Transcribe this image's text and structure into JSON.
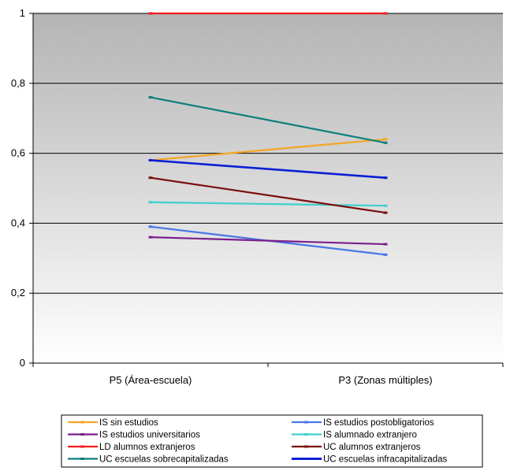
{
  "chart_data": {
    "type": "line",
    "categories": [
      "P5 (Área-escuela)",
      "P3 (Zonas múltiples)"
    ],
    "y_ticks": [
      "0",
      "0,2",
      "0,4",
      "0,6",
      "0,8",
      "1"
    ],
    "ylim": [
      0,
      1
    ],
    "grid": true,
    "legend_placement": "bottom",
    "series": [
      {
        "name": "IS sin estudios",
        "values": [
          0.58,
          0.64
        ],
        "color": "#F5A623"
      },
      {
        "name": "IS estudios postobligatorios",
        "values": [
          0.39,
          0.31
        ],
        "color": "#4A76E6"
      },
      {
        "name": "IS estudios universitarios",
        "values": [
          0.36,
          0.34
        ],
        "color": "#7B1F8C"
      },
      {
        "name": "IS alumnado extranjero",
        "values": [
          0.46,
          0.45
        ],
        "color": "#3FD0CC"
      },
      {
        "name": "LD alumnos extranjeros",
        "values": [
          1.0,
          1.0
        ],
        "color": "#F21B1B"
      },
      {
        "name": "UC alumnos extranjeros",
        "values": [
          0.53,
          0.43
        ],
        "color": "#7A0C0C"
      },
      {
        "name": "UC escuelas sobrecapitalizadas",
        "values": [
          0.76,
          0.63
        ],
        "color": "#0E7F7A"
      },
      {
        "name": "UC escuelas infracapitalizadas",
        "values": [
          0.58,
          0.53
        ],
        "color": "#0A1FD6"
      }
    ]
  }
}
